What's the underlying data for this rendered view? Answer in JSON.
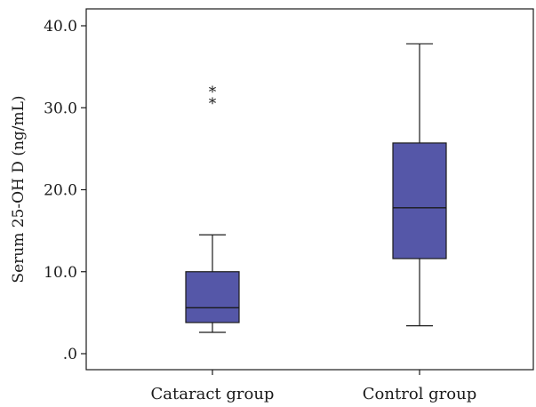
{
  "chart_data": {
    "type": "boxplot",
    "title": "",
    "xlabel": "",
    "ylabel": "Serum 25-OH D (ng/mL)",
    "ylim": [
      0,
      40
    ],
    "yticks": [
      {
        "value": 0,
        "label": ".0"
      },
      {
        "value": 10,
        "label": "10.0"
      },
      {
        "value": 20,
        "label": "20.0"
      },
      {
        "value": 30,
        "label": "30.0"
      },
      {
        "value": 40,
        "label": "40.0"
      }
    ],
    "categories": [
      "Cataract group",
      "Control group"
    ],
    "boxes": [
      {
        "category": "Cataract group",
        "whisker_low": 2.6,
        "q1": 3.8,
        "median": 5.6,
        "q3": 10.0,
        "whisker_high": 14.5,
        "outliers": [
          31.0,
          32.4
        ],
        "outlier_marker": "*"
      },
      {
        "category": "Control group",
        "whisker_low": 3.4,
        "q1": 11.6,
        "median": 17.8,
        "q3": 25.7,
        "whisker_high": 37.8,
        "outliers": [],
        "outlier_marker": "*"
      }
    ],
    "box_fill": "#5557a8",
    "line_color": "#1a1a1a",
    "grid": false,
    "legend": "none"
  }
}
